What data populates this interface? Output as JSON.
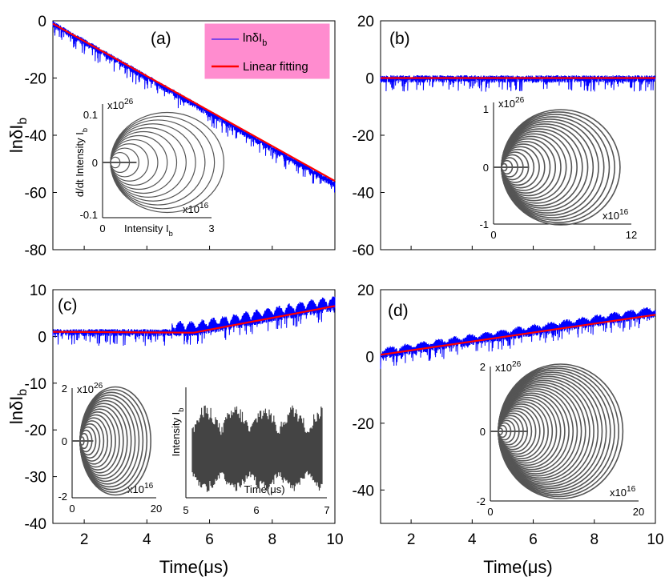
{
  "chart_data": [
    {
      "type": "line",
      "panel_label": "(a)",
      "xlabel": "",
      "ylabel": "lnδI_b",
      "xlim": [
        1,
        10
      ],
      "ylim": [
        -80,
        0
      ],
      "xticks": [],
      "yticks": [
        0,
        -20,
        -40,
        -60,
        -80
      ],
      "series": [
        {
          "name": "lnδI_b",
          "color": "#0000ff",
          "x": [
            1,
            10
          ],
          "y": [
            -1,
            -57
          ]
        },
        {
          "name": "Linear fitting",
          "color": "#ff0000",
          "x": [
            1,
            10
          ],
          "y": [
            -1,
            -56
          ]
        }
      ],
      "legend": {
        "position": "top-right",
        "background": "#ff8ccf",
        "entries": [
          "lnδI",
          "b",
          "Linear fitting"
        ]
      },
      "inset": {
        "type": "phase",
        "xlabel": "Intensity I",
        "xlabel_sub": "b",
        "ylabel": "d/dt Intensity I",
        "ylabel_sub": "b",
        "xticks": [
          "0",
          "3"
        ],
        "yticks": [
          "0.1",
          "0",
          "-0.1"
        ],
        "x_exp": "x10",
        "x_exp_pow": "16",
        "y_exp": "x10",
        "y_exp_pow": "26",
        "xlim": [
          0,
          3
        ],
        "ylim": [
          -0.1,
          0.1
        ]
      }
    },
    {
      "type": "line",
      "panel_label": "(b)",
      "xlabel": "",
      "ylabel": "",
      "xlim": [
        1,
        10
      ],
      "ylim": [
        -60,
        20
      ],
      "xticks": [],
      "yticks": [
        20,
        0,
        -20,
        -40,
        -60
      ],
      "series": [
        {
          "color": "#0000ff",
          "x": [
            1,
            10
          ],
          "y": [
            0,
            0
          ]
        },
        {
          "color": "#ff0000",
          "x": [
            1,
            10
          ],
          "y": [
            0,
            0
          ]
        }
      ],
      "inset": {
        "type": "phase",
        "xticks": [
          "0",
          "12"
        ],
        "yticks": [
          "1",
          "0",
          "-1"
        ],
        "x_exp": "x10",
        "x_exp_pow": "16",
        "y_exp": "x10",
        "y_exp_pow": "26",
        "xlim": [
          0,
          12
        ],
        "ylim": [
          -1,
          1
        ]
      }
    },
    {
      "type": "line",
      "panel_label": "(c)",
      "xlabel": "Time(μs)",
      "ylabel": "lnδI_b",
      "xlim": [
        1,
        10
      ],
      "ylim": [
        -40,
        10
      ],
      "xticks": [
        2,
        4,
        6,
        8,
        10
      ],
      "yticks": [
        10,
        0,
        -10,
        -20,
        -30,
        -40
      ],
      "series": [
        {
          "color": "#0000ff",
          "x": [
            1,
            5.5,
            10
          ],
          "y": [
            1,
            1,
            6.5
          ]
        },
        {
          "color": "#ff0000",
          "x": [
            1,
            5.5,
            10
          ],
          "y": [
            1,
            0.8,
            6.5
          ]
        }
      ],
      "inset": {
        "type": "phase",
        "xticks": [
          "0",
          "20"
        ],
        "yticks": [
          "2",
          "0",
          "-2"
        ],
        "x_exp": "x10",
        "x_exp_pow": "16",
        "y_exp": "x10",
        "y_exp_pow": "26",
        "xlim": [
          0,
          20
        ],
        "ylim": [
          -2,
          2
        ]
      },
      "inset2": {
        "type": "line",
        "xlabel": "Time(μs)",
        "ylabel": "Intensity I",
        "ylabel_sub": "b",
        "xticks": [
          "5",
          "6",
          "7"
        ],
        "xlim": [
          5,
          7
        ]
      }
    },
    {
      "type": "line",
      "panel_label": "(d)",
      "xlabel": "Time(μs)",
      "ylabel": "",
      "xlim": [
        1,
        10
      ],
      "ylim": [
        -50,
        20
      ],
      "xticks": [
        2,
        4,
        6,
        8,
        10
      ],
      "yticks": [
        20,
        0,
        -20,
        -40
      ],
      "series": [
        {
          "color": "#0000ff",
          "x": [
            1,
            10
          ],
          "y": [
            0.5,
            13
          ]
        },
        {
          "color": "#ff0000",
          "x": [
            1,
            10
          ],
          "y": [
            0.5,
            12.5
          ]
        }
      ],
      "inset": {
        "type": "phase",
        "xticks": [
          "0",
          "20"
        ],
        "yticks": [
          "2",
          "0",
          "-2"
        ],
        "x_exp": "x10",
        "x_exp_pow": "16",
        "y_exp": "x10",
        "y_exp_pow": "26",
        "xlim": [
          0,
          20
        ],
        "ylim": [
          -2,
          2
        ]
      }
    }
  ]
}
